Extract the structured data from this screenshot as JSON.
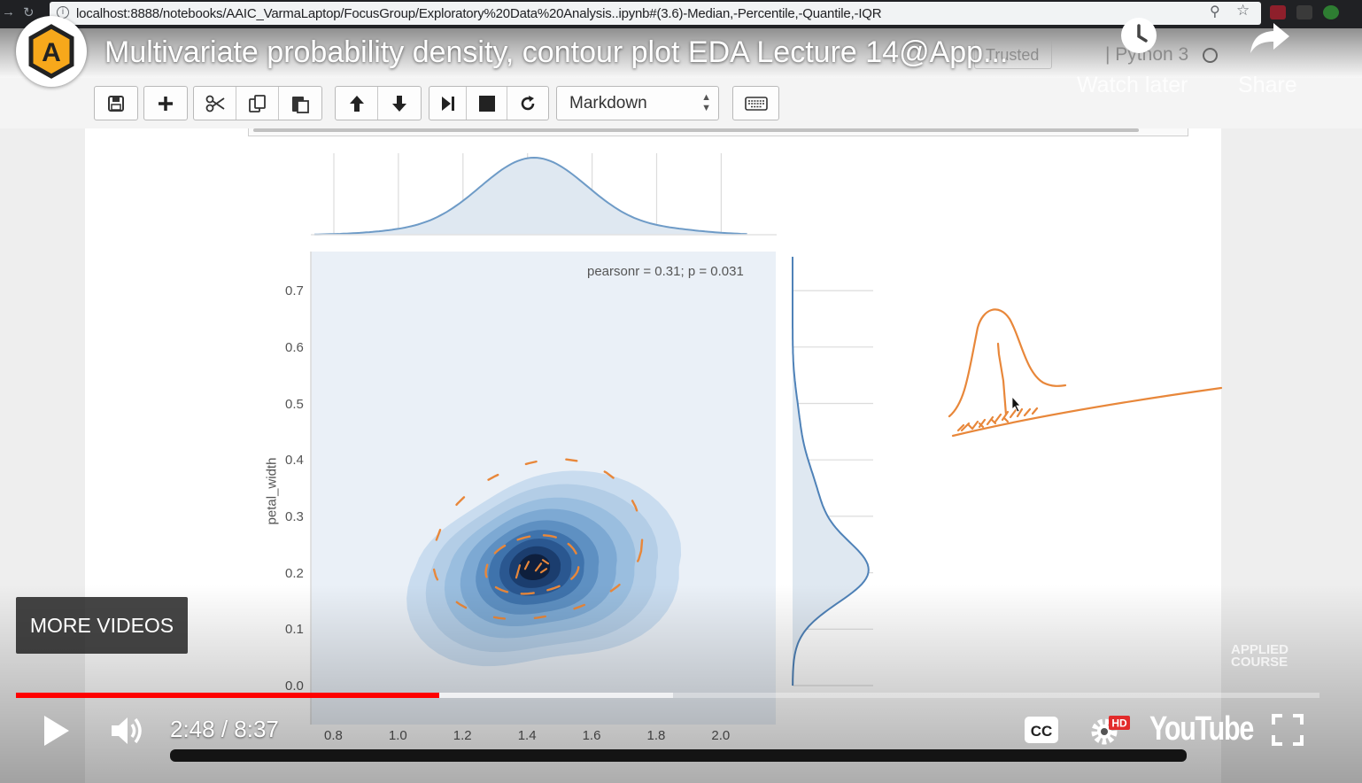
{
  "browser": {
    "url": "localhost:8888/notebooks/AAIC_VarmaLaptop/FocusGroup/Exploratory%20Data%20Analysis..ipynb#(3.6)-Median,-Percentile,-Quantile,-IQR"
  },
  "youtube": {
    "channel_logo_text": "A",
    "title": "Multivariate probability density, contour plot EDA Lecture 14@App...",
    "watch_later": "Watch later",
    "share": "Share",
    "more_videos": "MORE VIDEOS",
    "time_current": "2:48",
    "time_total": "8:37",
    "time_display": "2:48 / 8:37",
    "played_fraction": 0.325,
    "buffered_fraction": 0.504,
    "watermark_line1": "APPLIED",
    "watermark_line2": "COURSE",
    "wordmark": "YouTube",
    "hd_badge": "HD"
  },
  "jupyter": {
    "trusted": "Trusted",
    "kernel": "Python 3",
    "cell_type": "Markdown",
    "toolbar_icons": [
      "save-icon",
      "plus-icon",
      "cut-icon",
      "copy-icon",
      "paste-icon",
      "arrow-up-icon",
      "arrow-down-icon",
      "skip-next-icon",
      "stop-icon",
      "refresh-icon",
      "keyboard-icon"
    ]
  },
  "chart_data": {
    "type": "jointplot-kde",
    "annotation": "pearsonr = 0.31; p = 0.031",
    "ylabel": "petal_width",
    "xlabel": "",
    "xticks": [
      "0.8",
      "1.0",
      "1.2",
      "1.4",
      "1.6",
      "1.8",
      "2.0"
    ],
    "yticks": [
      "0.0",
      "0.1",
      "0.2",
      "0.3",
      "0.4",
      "0.5",
      "0.6",
      "0.7"
    ],
    "xlim": [
      0.8,
      2.05
    ],
    "ylim": [
      0.0,
      0.75
    ],
    "kde_peak": {
      "x": 1.42,
      "y": 0.21
    },
    "marginal_x_peak": 1.42,
    "marginal_y_peak": 0.2,
    "colors": {
      "kde": "#3b6ea8",
      "annotation_ink": "#e8873a"
    }
  }
}
